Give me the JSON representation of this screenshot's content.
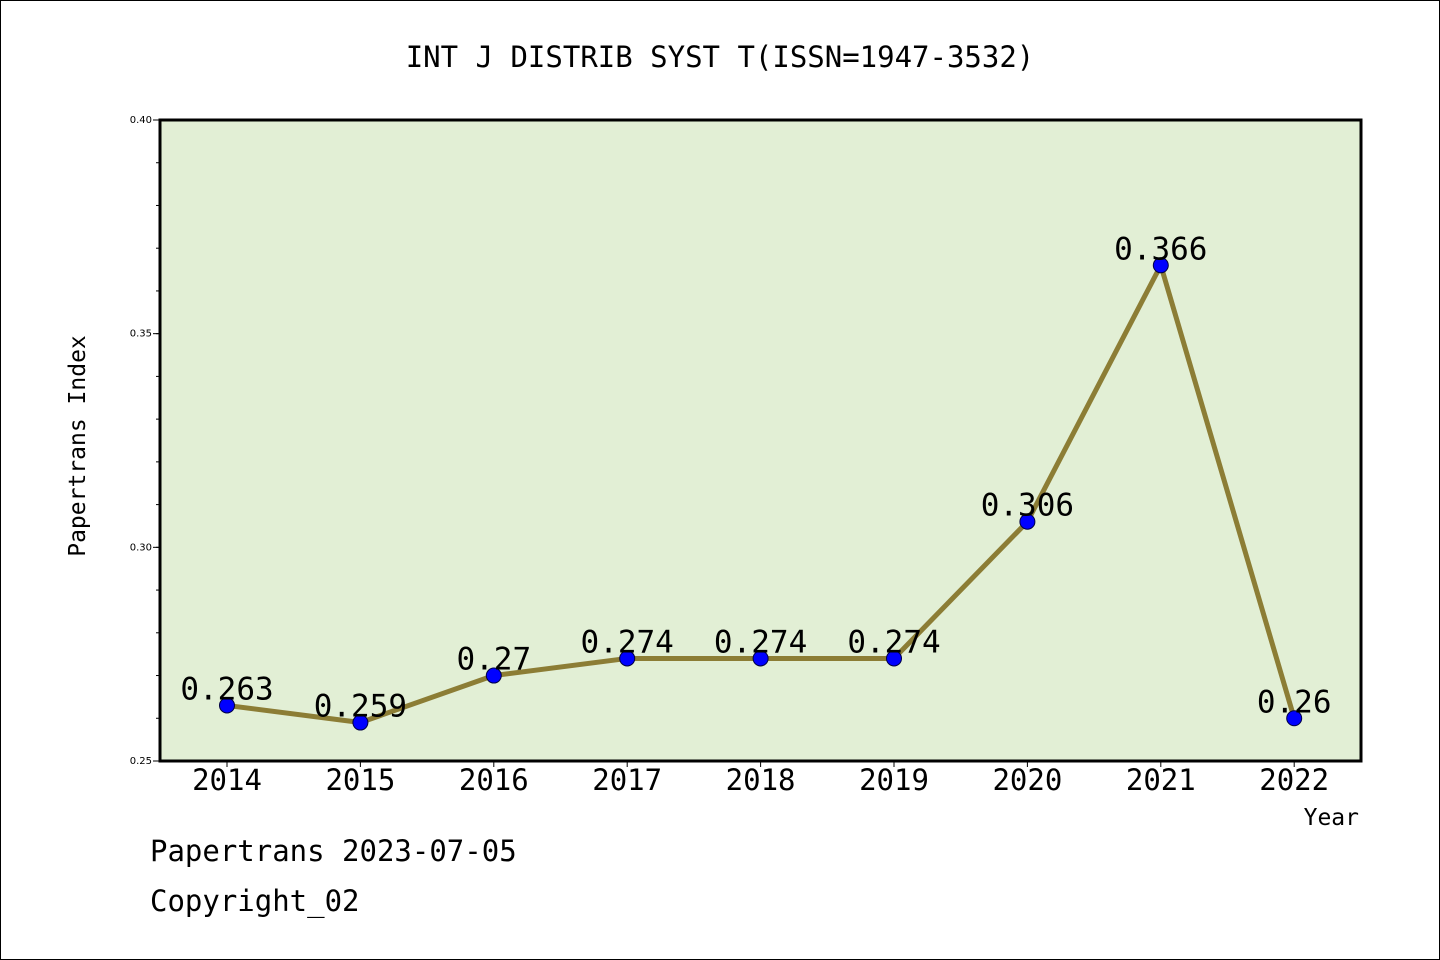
{
  "chart_data": {
    "type": "line",
    "title": "INT J DISTRIB SYST T(ISSN=1947-3532)",
    "xlabel": "Year",
    "ylabel": "Papertrans Index",
    "categories": [
      "2014",
      "2015",
      "2016",
      "2017",
      "2018",
      "2019",
      "2020",
      "2021",
      "2022"
    ],
    "series": [
      {
        "values": [
          0.263,
          0.259,
          0.27,
          0.274,
          0.274,
          0.274,
          0.306,
          0.366,
          0.26
        ],
        "data_labels": [
          "0.263",
          "0.259",
          "0.27",
          "0.274",
          "0.274",
          "0.274",
          "0.306",
          "0.366",
          "0.26"
        ]
      }
    ],
    "ylim": [
      0.25,
      0.4
    ],
    "yticks": [
      0.25,
      0.3,
      0.35,
      0.4
    ],
    "ytick_labels": [
      "0.25",
      "0.30",
      "0.35",
      "0.40"
    ],
    "grid": false,
    "colors": {
      "plot_background": "#e2efd5",
      "line": "#8c7d35",
      "marker": "#0000ff"
    }
  },
  "footer": {
    "date_text": "Papertrans 2023-07-05",
    "copyright_text": "Copyright_02"
  }
}
